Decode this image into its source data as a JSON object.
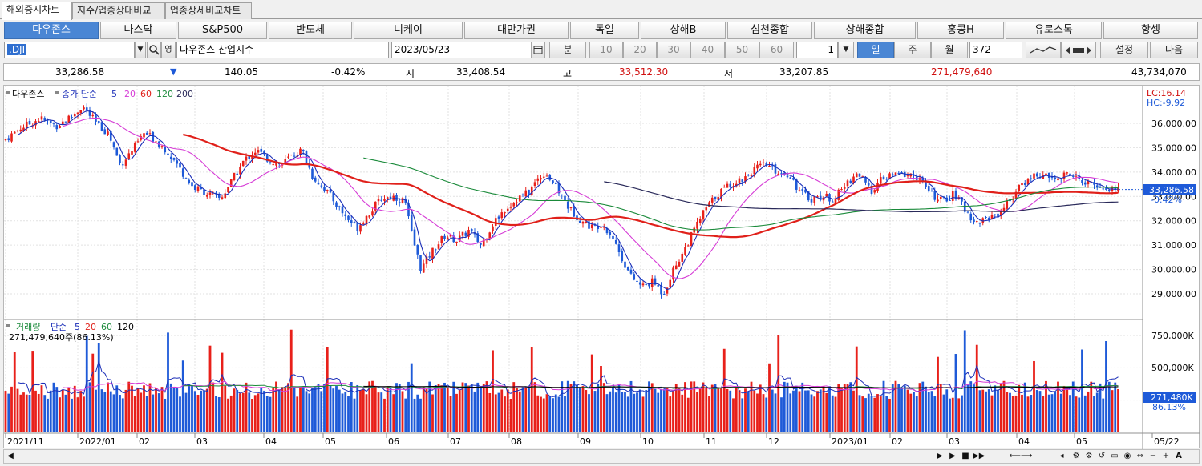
{
  "tabs": [
    "해외증시차트",
    "지수/업종상대비교",
    "업종상세비교차트"
  ],
  "markets": [
    "다우존스",
    "나스닥",
    "S&P500",
    "반도체",
    "니케이",
    "대만가권",
    "독일",
    "상해B",
    "심천종합",
    "상해종합",
    "홍콩H",
    "유로스톡",
    "항셍"
  ],
  "toolbar": {
    "code": ".DJI",
    "name": "다우존스 산업지수",
    "date": "2023/05/23",
    "period_label": "분",
    "minutes": [
      "10",
      "20",
      "30",
      "40",
      "50",
      "60"
    ],
    "step": "1",
    "day": "일",
    "week": "주",
    "month": "월",
    "count": "372",
    "settings": "설정",
    "next": "다음"
  },
  "info": {
    "price": "33,286.58",
    "change": "140.05",
    "pct": "-0.42%",
    "open_label": "시",
    "open": "33,408.54",
    "high_label": "고",
    "high": "33,512.30",
    "low_label": "저",
    "low": "33,207.85",
    "volume": "271,479,640",
    "amount": "43,734,070"
  },
  "price_panel": {
    "legend_name": "다우존스",
    "legend_ma": "종가 단순",
    "ma_periods": [
      "5",
      "20",
      "60",
      "120",
      "200"
    ],
    "lc": "LC:16.14",
    "hc": "HC:-9.92",
    "current_label": "33,286.58",
    "current_pct": "-0.42%",
    "y_ticks": [
      "36,000.00",
      "35,000.00",
      "34,000.00",
      "33,000.00",
      "32,000.00",
      "31,000.00",
      "30,000.00",
      "29,000.00"
    ]
  },
  "volume_panel": {
    "legend_name": "거래량",
    "legend_ma": "단순",
    "ma_periods": [
      "5",
      "20",
      "60",
      "120"
    ],
    "current": "271,479,640주(86.13%)",
    "y_ticks": [
      "750,000K",
      "500,000K"
    ],
    "current_label": "271,480K",
    "current_pct": "86.13%"
  },
  "x_labels": [
    "2021/11",
    "2022/01",
    "02",
    "03",
    "04",
    "05",
    "06",
    "07",
    "08",
    "09",
    "10",
    "11",
    "12",
    "2023/01",
    "02",
    "03",
    "04",
    "05",
    "05/22"
  ],
  "colors": {
    "up": "#e8201a",
    "down": "#1e5ad8",
    "ma5": "#1c2fb8",
    "ma20": "#d63cd6",
    "ma60": "#e0201a",
    "ma120": "#1a8a3a",
    "ma200": "#2a2a5a"
  }
}
